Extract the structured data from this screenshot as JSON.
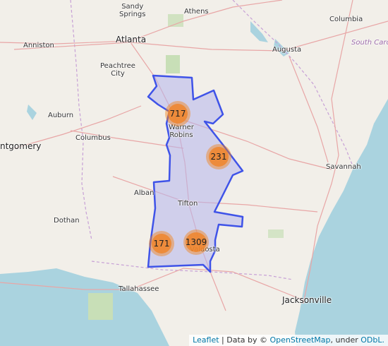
{
  "map": {
    "cities": [
      {
        "id": "sandy-springs",
        "label": "Sandy\nSprings"
      },
      {
        "id": "athens",
        "label": "Athens"
      },
      {
        "id": "columbia",
        "label": "Columbia"
      },
      {
        "id": "atlanta",
        "label": "Atlanta"
      },
      {
        "id": "anniston",
        "label": "Anniston"
      },
      {
        "id": "augusta",
        "label": "Augusta"
      },
      {
        "id": "south-carolina",
        "label": "South Caro"
      },
      {
        "id": "peachtree-city",
        "label": "Peachtree\nCity"
      },
      {
        "id": "warner-robins",
        "label": "Warner\nRobins"
      },
      {
        "id": "auburn",
        "label": "Auburn"
      },
      {
        "id": "columbus",
        "label": "Columbus"
      },
      {
        "id": "montgomery",
        "label": "ntgomery"
      },
      {
        "id": "savannah",
        "label": "Savannah"
      },
      {
        "id": "albany",
        "label": "Alban"
      },
      {
        "id": "tifton",
        "label": "Tifton"
      },
      {
        "id": "dothan",
        "label": "Dothan"
      },
      {
        "id": "valdosta",
        "label": "Valdosta"
      },
      {
        "id": "tallahassee",
        "label": "Tallahassee"
      },
      {
        "id": "jacksonville",
        "label": "Jacksonville"
      }
    ],
    "clusters": [
      {
        "id": "macon",
        "count": "717"
      },
      {
        "id": "east",
        "count": "231"
      },
      {
        "id": "southwest",
        "count": "171"
      },
      {
        "id": "valdosta",
        "count": "1309"
      }
    ],
    "colors": {
      "region_fill": "#b4b4ec",
      "region_stroke": "#3f53e8",
      "cluster_outer": "#f4a460",
      "cluster_inner": "#f0852d",
      "water": "#aad3df",
      "land": "#f2efe9"
    }
  },
  "attribution": {
    "leaflet": "Leaflet",
    "sep": " | Data by © ",
    "osm": "OpenStreetMap",
    "under": ", under ",
    "odbl": "ODbL."
  }
}
